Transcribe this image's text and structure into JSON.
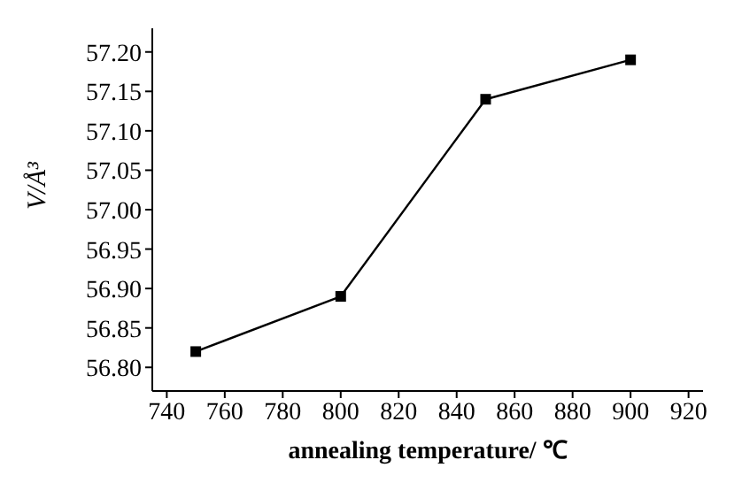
{
  "chart_data": {
    "type": "line",
    "xlabel": "annealing temperature/ ℃",
    "ylabel": "V/Å³",
    "x": [
      750,
      800,
      850,
      900
    ],
    "series": [
      {
        "color": "#000000",
        "values": [
          56.82,
          56.89,
          57.14,
          57.19
        ]
      }
    ],
    "xlim": [
      735,
      925
    ],
    "xticks": [
      740,
      760,
      780,
      800,
      820,
      840,
      860,
      880,
      900,
      920
    ],
    "ylim": [
      56.77,
      57.23
    ],
    "yticks": [
      {
        "value": 56.8,
        "label": "56.80"
      },
      {
        "value": 56.85,
        "label": "56.85"
      },
      {
        "value": 56.9,
        "label": "56.90"
      },
      {
        "value": 56.95,
        "label": "56.95"
      },
      {
        "value": 57,
        "label": "57.00"
      },
      {
        "value": 57.05,
        "label": "57.05"
      },
      {
        "value": 57.1,
        "label": "57.10"
      },
      {
        "value": 57.15,
        "label": "57.15"
      },
      {
        "value": 57.2,
        "label": "57.20"
      }
    ],
    "marker": "square",
    "line_style": "solid",
    "grid": false,
    "legend": false
  }
}
